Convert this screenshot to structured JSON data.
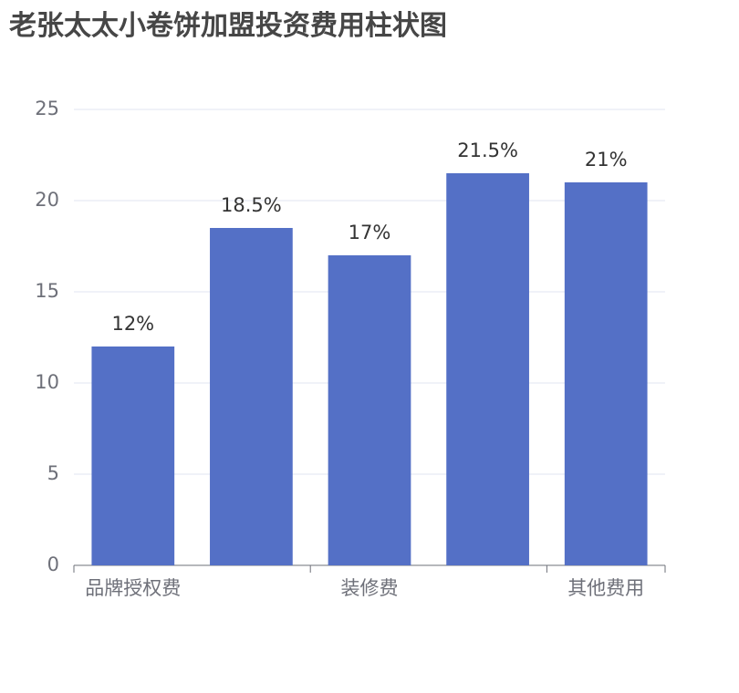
{
  "chart_data": {
    "type": "bar",
    "title": "老张太太小卷饼加盟投资费用柱状图",
    "categories": [
      "品牌授权费",
      null,
      "装修费",
      null,
      "其他费用"
    ],
    "values": [
      12,
      18.5,
      17,
      21.5,
      21
    ],
    "value_labels": [
      "12%",
      "18.5%",
      "17%",
      "21.5%",
      "21%"
    ],
    "color": "#5470c6",
    "ylim": [
      0,
      25
    ],
    "yticks": [
      0,
      5,
      10,
      15,
      20,
      25
    ],
    "grid": true
  }
}
